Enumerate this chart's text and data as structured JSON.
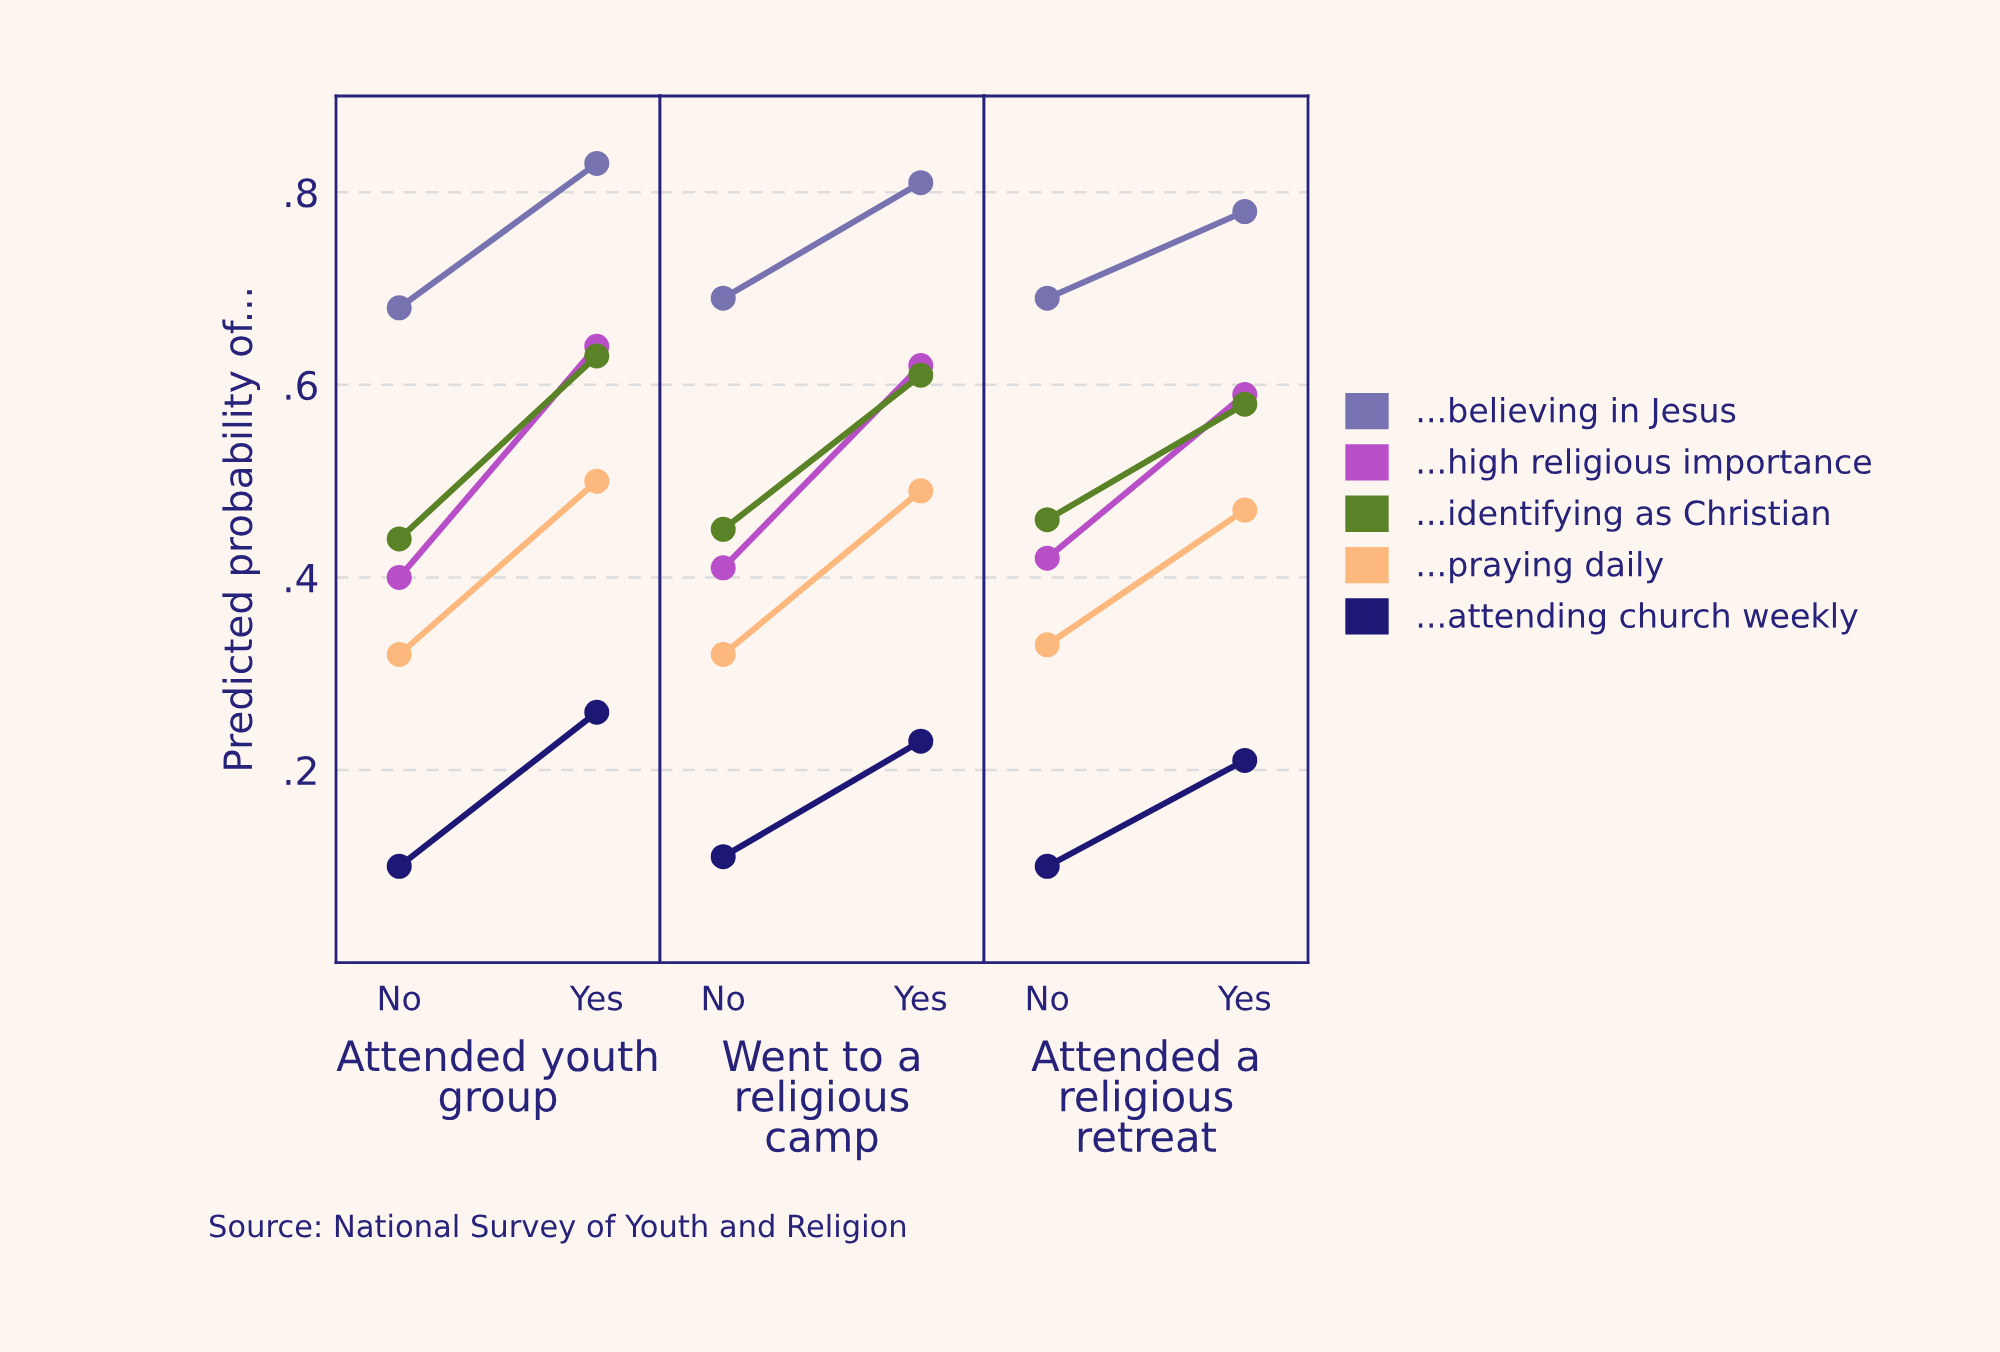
{
  "chart_data": [
    {
      "type": "line",
      "xlabel": "Attended youth\ngroup",
      "ylabel": "Predicted probability of...",
      "categories": [
        "No",
        "Yes"
      ],
      "ylim": [
        0,
        0.9
      ],
      "yticks": [
        {
          "value": 0.2,
          "label": ".2"
        },
        {
          "value": 0.4,
          "label": ".4"
        },
        {
          "value": 0.6,
          "label": ".6"
        },
        {
          "value": 0.8,
          "label": ".8"
        }
      ],
      "grid": "y",
      "marker": "circle",
      "line_style": "solid",
      "legend": "right",
      "annotations": [
        "Source: National Survey of Youth and Religion"
      ],
      "series": [
        {
          "name": "...believing in Jesus",
          "color": "#7773b0",
          "values": [
            0.68,
            0.83
          ]
        },
        {
          "name": "...high religious importance",
          "color": "#b84fc8",
          "values": [
            0.4,
            0.64
          ]
        },
        {
          "name": "...identifying as Christian",
          "color": "#5a8226",
          "values": [
            0.44,
            0.63
          ]
        },
        {
          "name": "...praying daily",
          "color": "#fdb87e",
          "values": [
            0.32,
            0.5
          ]
        },
        {
          "name": "...attending church weekly",
          "color": "#1d1775",
          "values": [
            0.1,
            0.26
          ]
        }
      ]
    },
    {
      "type": "line",
      "xlabel": "Went to a\nreligious\ncamp",
      "categories": [
        "No",
        "Yes"
      ],
      "ylim": [
        0,
        0.9
      ],
      "yticks": [
        {
          "value": 0.2,
          "label": null
        },
        {
          "value": 0.4,
          "label": null
        },
        {
          "value": 0.6,
          "label": null
        },
        {
          "value": 0.8,
          "label": null
        }
      ],
      "grid": "y",
      "marker": "circle",
      "line_style": "solid",
      "tick_labels": "x",
      "series": [
        {
          "color": "#7773b0",
          "values": [
            0.69,
            0.81
          ]
        },
        {
          "color": "#b84fc8",
          "values": [
            0.41,
            0.62
          ]
        },
        {
          "color": "#5a8226",
          "values": [
            0.45,
            0.61
          ]
        },
        {
          "color": "#fdb87e",
          "values": [
            0.32,
            0.49
          ]
        },
        {
          "color": "#1d1775",
          "values": [
            0.11,
            0.23
          ]
        }
      ]
    },
    {
      "type": "line",
      "xlabel": "Attended a\nreligious\nretreat",
      "categories": [
        "No",
        "Yes"
      ],
      "ylim": [
        0,
        0.9
      ],
      "yticks": [
        {
          "value": 0.2,
          "label": null
        },
        {
          "value": 0.4,
          "label": null
        },
        {
          "value": 0.6,
          "label": null
        },
        {
          "value": 0.8,
          "label": null
        }
      ],
      "grid": "y",
      "marker": "circle",
      "line_style": "solid",
      "tick_labels": "x",
      "series": [
        {
          "color": "#7773b0",
          "values": [
            0.69,
            0.78
          ]
        },
        {
          "color": "#b84fc8",
          "values": [
            0.42,
            0.59
          ]
        },
        {
          "color": "#5a8226",
          "values": [
            0.46,
            0.58
          ]
        },
        {
          "color": "#fdb87e",
          "values": [
            0.33,
            0.47
          ]
        },
        {
          "color": "#1d1775",
          "values": [
            0.1,
            0.21
          ]
        }
      ]
    }
  ]
}
